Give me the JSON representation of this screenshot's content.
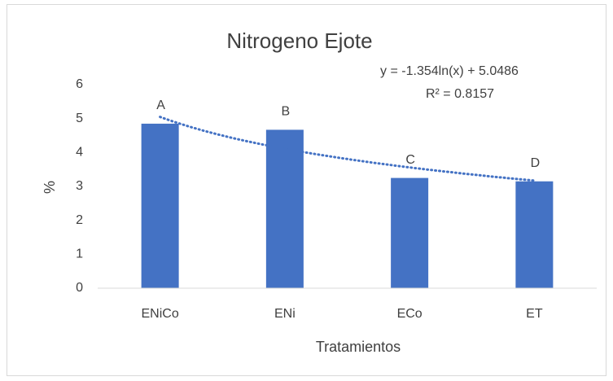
{
  "chart_data": {
    "type": "bar",
    "title": "Nitrogeno Ejote",
    "x_label": "Tratamientos",
    "y_label": "%",
    "categories": [
      "ENiCo",
      "ENi",
      "ECo",
      "ET"
    ],
    "values": [
      4.85,
      4.67,
      3.25,
      3.15
    ],
    "annotations": [
      "A",
      "B",
      "C",
      "D"
    ],
    "color": "#4472c4",
    "ylim": [
      0,
      6
    ],
    "yticks": [
      0,
      1,
      2,
      3,
      4,
      5,
      6
    ],
    "grid": false,
    "trendline": {
      "type": "log",
      "a": -1.354,
      "b": 5.0486,
      "equation": "y = -1.354ln(x) + 5.0486",
      "r2": 0.8157,
      "r2_label": "R² = 0.8157",
      "color": "#4472c4"
    }
  }
}
